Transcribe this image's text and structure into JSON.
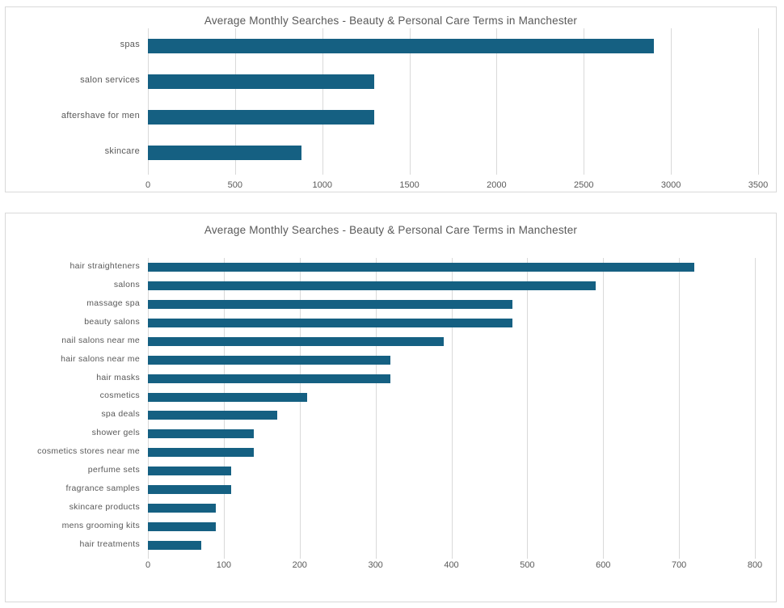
{
  "colors": {
    "bar": "#156082",
    "grid": "#D9D9D9",
    "axis": "#D9D9D9",
    "text": "#595959",
    "panel_border": "#D9D9D9",
    "background": "#FFFFFF"
  },
  "chart_data": [
    {
      "type": "bar",
      "orientation": "horizontal",
      "title": "Average Monthly Searches - Beauty & Personal Care Terms in Manchester",
      "categories": [
        "spas",
        "salon services",
        "aftershave for men",
        "skincare"
      ],
      "values": [
        2900,
        1300,
        1300,
        880
      ],
      "xlabel": "",
      "ylabel": "",
      "xlim": [
        0,
        3500
      ],
      "xticks": [
        0,
        500,
        1000,
        1500,
        2000,
        2500,
        3000,
        3500
      ],
      "grid": true,
      "legend": false,
      "bar_color": "#156082"
    },
    {
      "type": "bar",
      "orientation": "horizontal",
      "title": "Average Monthly Searches - Beauty & Personal Care Terms in Manchester",
      "categories": [
        "hair straighteners",
        "salons",
        "massage spa",
        "beauty salons",
        "nail salons near me",
        "hair salons near me",
        "hair masks",
        "cosmetics",
        "spa deals",
        "shower gels",
        "cosmetics stores near me",
        "perfume sets",
        "fragrance samples",
        "skincare products",
        "mens grooming kits",
        "hair treatments"
      ],
      "values": [
        720,
        590,
        480,
        480,
        390,
        320,
        320,
        210,
        170,
        140,
        140,
        110,
        110,
        90,
        90,
        70
      ],
      "xlabel": "",
      "ylabel": "",
      "xlim": [
        0,
        800
      ],
      "xticks": [
        0,
        100,
        200,
        300,
        400,
        500,
        600,
        700,
        800
      ],
      "grid": true,
      "legend": false,
      "bar_color": "#156082"
    }
  ]
}
